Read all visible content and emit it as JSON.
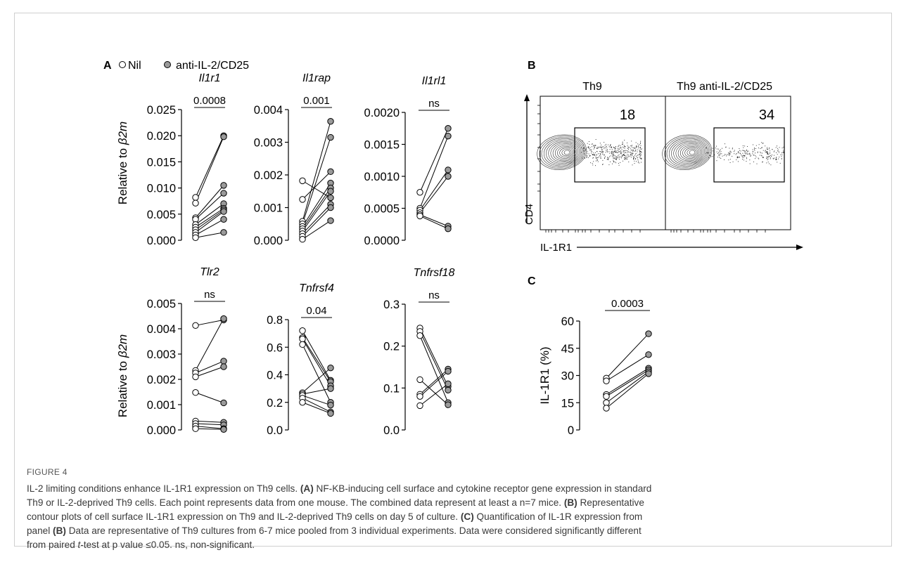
{
  "legend": {
    "nil": "Nil",
    "anti": "anti-IL-2/CD25"
  },
  "panel_letters": {
    "A": "A",
    "B": "B",
    "C": "C"
  },
  "y_label_A": "Relative to β2m",
  "charts": [
    {
      "gene": "Il1r1",
      "pval": "0.0008",
      "yticks": [
        "0.025",
        "0.020",
        "0.015",
        "0.010",
        "0.005",
        "0.000"
      ],
      "ymax": 0.025,
      "pairs": [
        [
          0.0082,
          0.02
        ],
        [
          0.0071,
          0.0198
        ],
        [
          0.0043,
          0.0105
        ],
        [
          0.004,
          0.009
        ],
        [
          0.003,
          0.007
        ],
        [
          0.0025,
          0.0061
        ],
        [
          0.002,
          0.0058
        ],
        [
          0.0015,
          0.0055
        ],
        [
          0.001,
          0.004
        ],
        [
          0.0005,
          0.0015
        ]
      ]
    },
    {
      "gene": "Il1rap",
      "pval": "0.001",
      "yticks": [
        "0.004",
        "0.003",
        "0.002",
        "0.001",
        "0.000"
      ],
      "ymax": 0.004,
      "pairs": [
        [
          0.00182,
          0.0013
        ],
        [
          0.00125,
          0.0021
        ],
        [
          0.00058,
          0.00364
        ],
        [
          0.0005,
          0.00315
        ],
        [
          0.00042,
          0.00175
        ],
        [
          0.00035,
          0.0016
        ],
        [
          0.00028,
          0.0015
        ],
        [
          0.0002,
          0.0011
        ],
        [
          0.00012,
          0.001
        ],
        [
          3e-05,
          0.0006
        ]
      ]
    },
    {
      "gene": "Il1rl1",
      "pval": "ns",
      "yticks": [
        "0.0020",
        "0.0015",
        "0.0010",
        "0.0005",
        "0.0000"
      ],
      "ymax": 0.002,
      "pairs": [
        [
          0.00075,
          0.00175
        ],
        [
          0.0005,
          0.00163
        ],
        [
          0.00047,
          0.0011
        ],
        [
          0.00043,
          0.001
        ],
        [
          0.0004,
          0.00022
        ],
        [
          0.00038,
          0.00018
        ]
      ]
    },
    {
      "gene": "Tlr2",
      "pval": "ns",
      "yticks": [
        "0.005",
        "0.004",
        "0.003",
        "0.002",
        "0.001",
        "0.000"
      ],
      "ymax": 0.005,
      "pairs": [
        [
          0.00413,
          0.00435
        ],
        [
          0.00235,
          0.0044
        ],
        [
          0.00225,
          0.00272
        ],
        [
          0.0021,
          0.0025
        ],
        [
          0.00148,
          0.00107
        ],
        [
          0.00035,
          0.0003
        ],
        [
          0.00025,
          0.0002
        ],
        [
          0.00015,
          5e-05
        ],
        [
          5e-05,
          2e-05
        ]
      ]
    },
    {
      "gene": "Tnfrsf4",
      "pval": "0.04",
      "yticks": [
        "0.8",
        "0.6",
        "0.4",
        "0.2",
        "0.0"
      ],
      "ymax": 0.8,
      "pairs": [
        [
          0.72,
          0.36
        ],
        [
          0.67,
          0.35
        ],
        [
          0.66,
          0.32
        ],
        [
          0.62,
          0.2
        ],
        [
          0.27,
          0.45
        ],
        [
          0.26,
          0.3
        ],
        [
          0.25,
          0.18
        ],
        [
          0.23,
          0.13
        ],
        [
          0.2,
          0.12
        ]
      ]
    },
    {
      "gene": "Tnfrsf18",
      "pval": "ns",
      "yticks": [
        "0.3",
        "0.2",
        "0.1",
        "0.0"
      ],
      "ymax": 0.3,
      "pairs": [
        [
          0.243,
          0.104
        ],
        [
          0.235,
          0.095
        ],
        [
          0.225,
          0.065
        ],
        [
          0.12,
          0.06
        ],
        [
          0.085,
          0.145
        ],
        [
          0.08,
          0.14
        ],
        [
          0.058,
          0.11
        ]
      ]
    }
  ],
  "flow": {
    "titles": [
      "Th9",
      "Th9 anti-IL-2/CD25"
    ],
    "gate_values": [
      "18",
      "34"
    ],
    "y_axis": "CD4",
    "x_axis": "IL-1R1"
  },
  "chart_c": {
    "pval": "0.0003",
    "ylabel": "IL-1R1 (%)",
    "yticks": [
      "60",
      "45",
      "30",
      "15",
      "0"
    ],
    "ymax": 60,
    "pairs": [
      [
        28.5,
        53
      ],
      [
        27,
        41.5
      ],
      [
        19.5,
        34
      ],
      [
        18.5,
        33
      ],
      [
        15,
        32
      ],
      [
        12,
        31
      ]
    ]
  },
  "caption": {
    "figure_label": "FIGURE 4",
    "lines": [
      "IL-2 limiting conditions enhance IL-1R1 expression on Th9 cells. (A) NF-KB-inducing cell surface and cytokine receptor gene expression in standard",
      "Th9 or IL-2-deprived Th9 cells. Each point represents data from one mouse. The combined data represent at least a n=7 mice. (B) Representative",
      "contour plots of cell surface IL-1R1 expression on Th9 and IL-2-deprived Th9 cells on day 5 of culture. (C) Quantification of IL-1R expression from",
      "panel (B) Data are representative of Th9 cultures from 6-7 mice pooled from 3 individual experiments. Data were considered significantly different",
      "from paired t-test at p value ≤0.05. ns, non-significant."
    ]
  },
  "colors": {
    "filled_marker": "#9a9a9a",
    "open_marker": "#ffffff",
    "stroke": "#000000",
    "caption_text": "#3a3a3a"
  }
}
